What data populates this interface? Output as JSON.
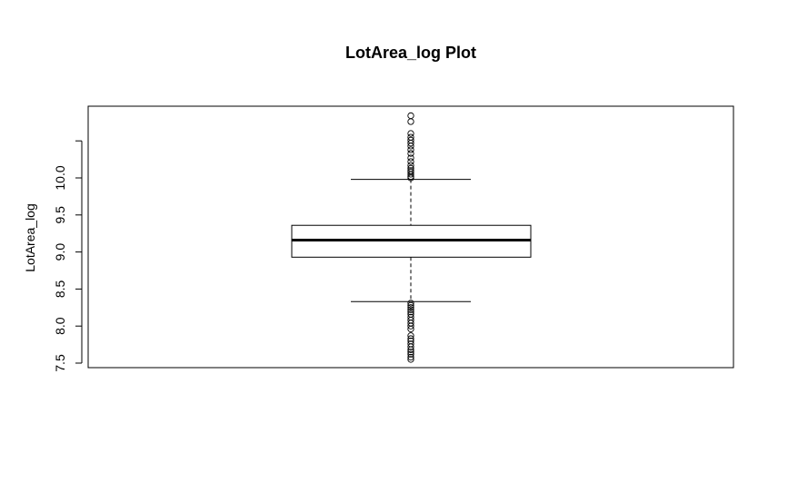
{
  "chart_data": {
    "type": "box",
    "title": "LotArea_log Plot",
    "xlabel": "",
    "ylabel": "LotArea_log",
    "ylim": [
      7.5,
      11.0
    ],
    "yticks": [
      7.5,
      8.0,
      8.5,
      9.0,
      9.5,
      10.0,
      10.5
    ],
    "ytick_labels": [
      "7.5",
      "8.0",
      "8.5",
      "9.0",
      "9.5",
      "10.0",
      ""
    ],
    "box": {
      "lower_whisker": 8.33,
      "q1": 8.93,
      "median": 9.16,
      "q3": 9.36,
      "upper_whisker": 9.98
    },
    "outliers_high": [
      10.0,
      10.02,
      10.05,
      10.08,
      10.1,
      10.13,
      10.17,
      10.22,
      10.27,
      10.33,
      10.38,
      10.43,
      10.47,
      10.51,
      10.55,
      10.6,
      10.76,
      10.84
    ],
    "outliers_low": [
      8.31,
      8.28,
      8.25,
      8.22,
      8.19,
      8.16,
      8.12,
      8.08,
      8.04,
      8.0,
      7.96,
      7.87,
      7.83,
      7.8,
      7.76,
      7.72,
      7.68,
      7.65,
      7.62,
      7.58,
      7.55
    ]
  }
}
